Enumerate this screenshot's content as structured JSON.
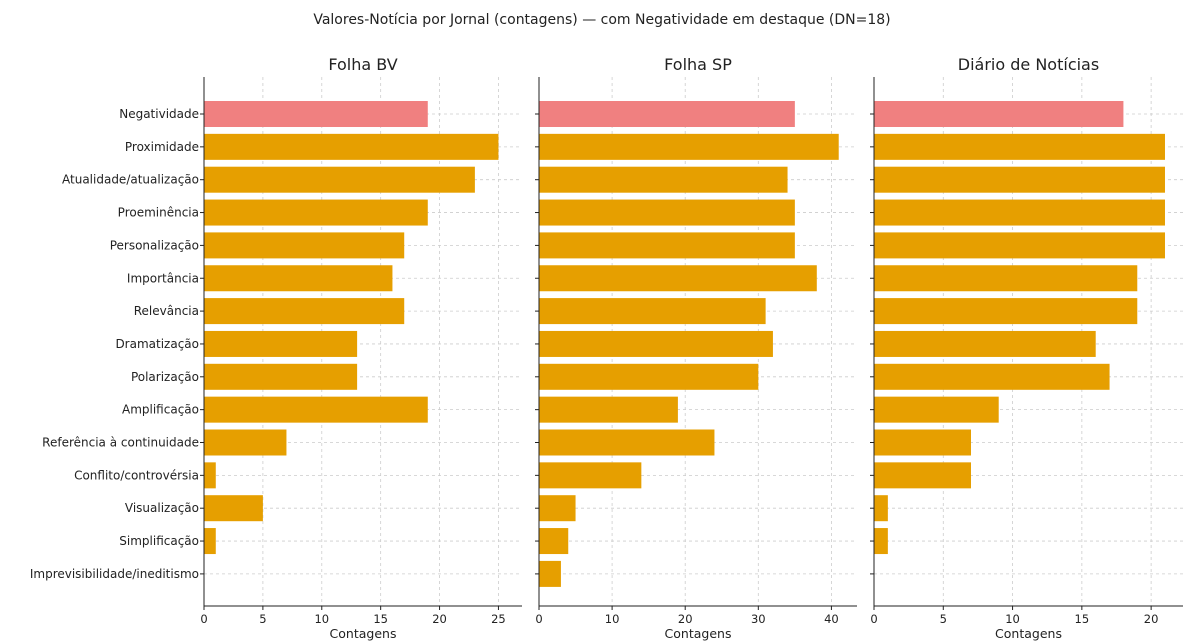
{
  "chart_data": {
    "type": "bar",
    "orientation": "horizontal",
    "title": "Valores-Notícia por Jornal (contagens) — com Negatividade em destaque (DN=18)",
    "grid": true,
    "colors": {
      "default": "#E69F00",
      "highlight": "#F08080"
    },
    "highlight_category": "Negatividade",
    "categories": [
      "Negatividade",
      "Proximidade",
      "Atualidade/atualização",
      "Proeminência",
      "Personalização",
      "Importância",
      "Relevância",
      "Dramatização",
      "Polarização",
      "Amplificação",
      "Referência à continuidade",
      "Conflito/controvérsia",
      "Visualização",
      "Simplificação",
      "Imprevisibilidade/ineditismo"
    ],
    "panels": [
      {
        "title": "Folha BV",
        "xlabel": "Contagens",
        "xlim": [
          0,
          27
        ],
        "xticks": [
          0,
          5,
          10,
          15,
          20,
          25
        ],
        "values": [
          19,
          25,
          23,
          19,
          17,
          16,
          17,
          13,
          13,
          19,
          7,
          1,
          5,
          1,
          0
        ]
      },
      {
        "title": "Folha SP",
        "xlabel": "Contagens",
        "xlim": [
          0,
          43.5
        ],
        "xticks": [
          0,
          10,
          20,
          30,
          40
        ],
        "values": [
          35,
          41,
          34,
          35,
          35,
          38,
          31,
          32,
          30,
          19,
          24,
          14,
          5,
          4,
          3
        ]
      },
      {
        "title": "Diário de Notícias",
        "xlabel": "Contagens",
        "xlim": [
          0,
          22.3
        ],
        "xticks": [
          0,
          5,
          10,
          15,
          20
        ],
        "values": [
          18,
          21,
          21,
          21,
          21,
          19,
          19,
          16,
          17,
          9,
          7,
          7,
          1,
          1,
          0
        ]
      }
    ]
  }
}
